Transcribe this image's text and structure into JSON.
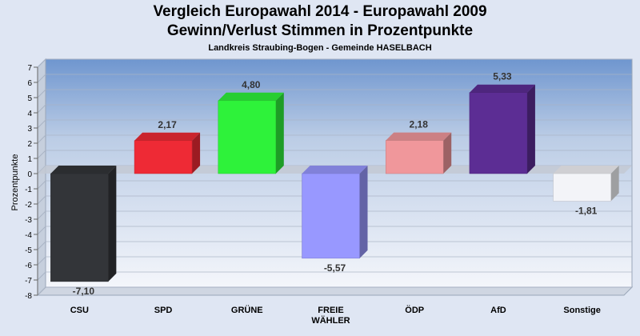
{
  "chart_data": {
    "type": "bar",
    "title": "Vergleich Europawahl 2014 - Europawahl 2009",
    "subtitle": "Gewinn/Verlust Stimmen in Prozentpunkte",
    "caption": "Landkreis Straubing-Bogen - Gemeinde HASELBACH",
    "ylabel": "Prozentpunkte",
    "xlabel": "",
    "ylim": [
      -8,
      7
    ],
    "yticks": [
      7,
      6,
      5,
      4,
      3,
      2,
      1,
      0,
      -1,
      -2,
      -3,
      -4,
      -5,
      -6,
      -7,
      -8
    ],
    "categories": [
      "CSU",
      "SPD",
      "GRÜNE",
      "FREIE WÄHLER",
      "ÖDP",
      "AfD",
      "Sonstige"
    ],
    "category_lines": [
      [
        "CSU"
      ],
      [
        "SPD"
      ],
      [
        "GRÜNE"
      ],
      [
        "FREIE",
        "WÄHLER"
      ],
      [
        "ÖDP"
      ],
      [
        "AfD"
      ],
      [
        "Sonstige"
      ]
    ],
    "values": [
      -7.1,
      2.17,
      4.8,
      -5.57,
      2.18,
      5.33,
      -1.81
    ],
    "value_labels": [
      "-7,10",
      "2,17",
      "4,80",
      "-5,57",
      "2,18",
      "5,33",
      "-1,81"
    ],
    "colors": [
      "#333539",
      "#ee2a35",
      "#2ef23a",
      "#9898ff",
      "#f0979b",
      "#5c2d94",
      "#f3f4f8"
    ],
    "grid": true,
    "legend": "none"
  }
}
